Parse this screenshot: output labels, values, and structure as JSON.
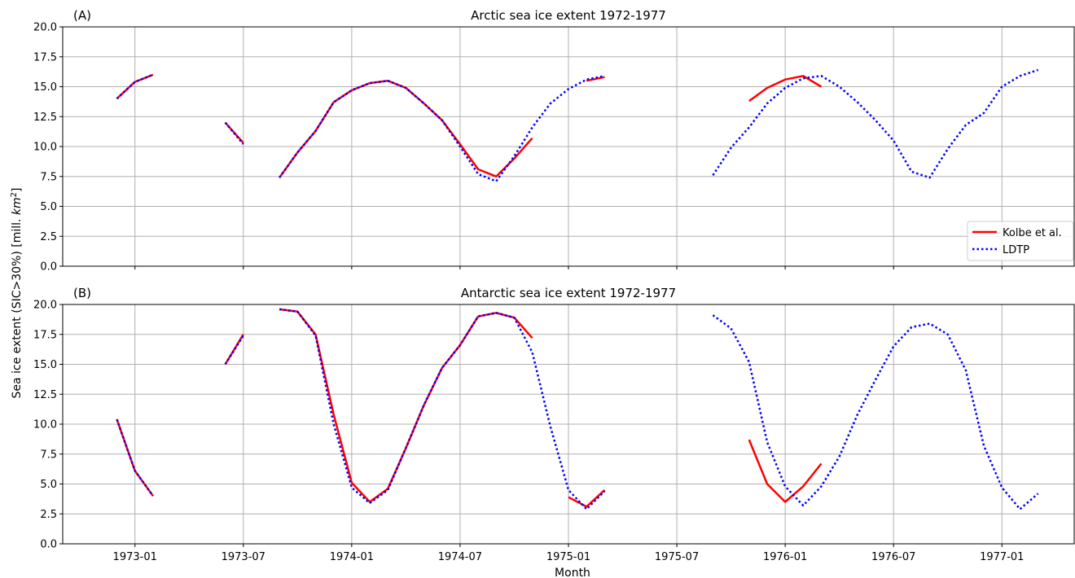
{
  "figure": {
    "ylabel": "Sea ice extent (SIC>30%) [mill. km²]",
    "ylabel_parts": [
      "Sea ice extent (SIC>30%) [mill. ",
      "km",
      "2",
      "]"
    ],
    "xlabel": "Month",
    "x_tick_labels": [
      "1973-01",
      "1973-07",
      "1974-01",
      "1974-07",
      "1975-01",
      "1975-07",
      "1976-01",
      "1976-07",
      "1977-01"
    ],
    "y_tick_labels": [
      "0.0",
      "2.5",
      "5.0",
      "7.5",
      "10.0",
      "12.5",
      "15.0",
      "17.5",
      "20.0"
    ]
  },
  "legend": {
    "placement": "lower right",
    "entries": [
      {
        "label": "Kolbe et al.",
        "color": "#ff0000",
        "style": "solid"
      },
      {
        "label": "LDTP",
        "color": "#0000ff",
        "style": "dotted"
      }
    ]
  },
  "chart_data": [
    {
      "type": "line",
      "panel": "(A)",
      "title": "Arctic sea ice extent 1972-1977",
      "xlabel": "",
      "ylabel": "Sea ice extent (SIC>30%) [mill. km²]",
      "ylim": [
        0,
        20
      ],
      "xlim": [
        "1972-09",
        "1977-05"
      ],
      "grid": true,
      "legend": "lower right",
      "series": [
        {
          "name": "Kolbe et al.",
          "color": "#ff0000",
          "style": "solid",
          "points": [
            [
              "1972-12",
              14.0
            ],
            [
              "1973-01",
              15.4
            ],
            [
              "1973-02",
              16.0
            ],
            null,
            [
              "1973-06",
              12.0
            ],
            [
              "1973-07",
              10.3
            ],
            null,
            [
              "1973-09",
              7.4
            ],
            [
              "1973-10",
              9.5
            ],
            [
              "1973-11",
              11.3
            ],
            [
              "1973-12",
              13.7
            ],
            [
              "1974-01",
              14.7
            ],
            [
              "1974-02",
              15.3
            ],
            [
              "1974-03",
              15.5
            ],
            [
              "1974-04",
              14.9
            ],
            [
              "1974-05",
              13.6
            ],
            [
              "1974-06",
              12.2
            ],
            [
              "1974-07",
              10.2
            ],
            [
              "1974-08",
              8.1
            ],
            [
              "1974-09",
              7.5
            ],
            [
              "1974-10",
              9.0
            ],
            [
              "1974-11",
              10.7
            ],
            null,
            [
              "1975-02",
              15.5
            ],
            [
              "1975-03",
              15.8
            ],
            null,
            [
              "1975-11",
              13.8
            ],
            [
              "1975-12",
              14.9
            ],
            [
              "1976-01",
              15.6
            ],
            [
              "1976-02",
              15.9
            ],
            [
              "1976-03",
              15.0
            ]
          ]
        },
        {
          "name": "LDTP",
          "color": "#0000ff",
          "style": "dotted",
          "points": [
            [
              "1972-12",
              14.0
            ],
            [
              "1973-01",
              15.4
            ],
            [
              "1973-02",
              16.0
            ],
            null,
            [
              "1973-06",
              12.0
            ],
            [
              "1973-07",
              10.2
            ],
            null,
            [
              "1973-09",
              7.4
            ],
            [
              "1973-10",
              9.5
            ],
            [
              "1973-11",
              11.3
            ],
            [
              "1973-12",
              13.7
            ],
            [
              "1974-01",
              14.7
            ],
            [
              "1974-02",
              15.3
            ],
            [
              "1974-03",
              15.5
            ],
            [
              "1974-04",
              14.9
            ],
            [
              "1974-05",
              13.6
            ],
            [
              "1974-06",
              12.2
            ],
            [
              "1974-07",
              10.0
            ],
            [
              "1974-08",
              7.7
            ],
            [
              "1974-09",
              7.1
            ],
            [
              "1974-10",
              9.2
            ],
            [
              "1974-11",
              11.6
            ],
            [
              "1974-12",
              13.6
            ],
            [
              "1975-01",
              14.8
            ],
            [
              "1975-02",
              15.6
            ],
            [
              "1975-03",
              15.9
            ],
            null,
            [
              "1975-09",
              7.6
            ],
            [
              "1975-10",
              9.9
            ],
            [
              "1975-11",
              11.6
            ],
            [
              "1975-12",
              13.6
            ],
            [
              "1976-01",
              14.9
            ],
            [
              "1976-02",
              15.7
            ],
            [
              "1976-03",
              15.9
            ],
            [
              "1976-04",
              15.0
            ],
            [
              "1976-05",
              13.7
            ],
            [
              "1976-06",
              12.2
            ],
            [
              "1976-07",
              10.5
            ],
            [
              "1976-08",
              7.9
            ],
            [
              "1976-09",
              7.4
            ],
            [
              "1976-10",
              9.8
            ],
            [
              "1976-11",
              11.8
            ],
            [
              "1976-12",
              12.8
            ],
            [
              "1977-01",
              15.0
            ],
            [
              "1977-02",
              15.9
            ],
            [
              "1977-03",
              16.4
            ]
          ]
        }
      ]
    },
    {
      "type": "line",
      "panel": "(B)",
      "title": "Antarctic sea ice extent 1972-1977",
      "xlabel": "Month",
      "ylabel": "Sea ice extent (SIC>30%) [mill. km²]",
      "ylim": [
        0,
        20
      ],
      "xlim": [
        "1972-09",
        "1977-05"
      ],
      "grid": true,
      "series": [
        {
          "name": "Kolbe et al.",
          "color": "#ff0000",
          "style": "solid",
          "points": [
            [
              "1972-12",
              10.4
            ],
            [
              "1973-01",
              6.1
            ],
            [
              "1973-02",
              4.0
            ],
            null,
            [
              "1973-06",
              15.0
            ],
            [
              "1973-07",
              17.5
            ],
            null,
            [
              "1973-09",
              19.6
            ],
            [
              "1973-10",
              19.4
            ],
            [
              "1973-11",
              17.5
            ],
            [
              "1973-12",
              10.8
            ],
            [
              "1974-01",
              5.1
            ],
            [
              "1974-02",
              3.5
            ],
            [
              "1974-03",
              4.6
            ],
            [
              "1974-04",
              8.0
            ],
            [
              "1974-05",
              11.6
            ],
            [
              "1974-06",
              14.7
            ],
            [
              "1974-07",
              16.6
            ],
            [
              "1974-08",
              19.0
            ],
            [
              "1974-09",
              19.3
            ],
            [
              "1974-10",
              18.9
            ],
            [
              "1974-11",
              17.2
            ],
            null,
            [
              "1975-01",
              3.9
            ],
            [
              "1975-02",
              3.1
            ],
            [
              "1975-03",
              4.5
            ],
            null,
            [
              "1975-11",
              8.7
            ],
            [
              "1975-12",
              5.0
            ],
            [
              "1976-01",
              3.5
            ],
            [
              "1976-02",
              4.8
            ],
            [
              "1976-03",
              6.7
            ]
          ]
        },
        {
          "name": "LDTP",
          "color": "#0000ff",
          "style": "dotted",
          "points": [
            [
              "1972-12",
              10.4
            ],
            [
              "1973-01",
              6.1
            ],
            [
              "1973-02",
              4.0
            ],
            null,
            [
              "1973-06",
              15.0
            ],
            [
              "1973-07",
              17.4
            ],
            null,
            [
              "1973-09",
              19.6
            ],
            [
              "1973-10",
              19.4
            ],
            [
              "1973-11",
              17.4
            ],
            [
              "1973-12",
              10.0
            ],
            [
              "1974-01",
              4.7
            ],
            [
              "1974-02",
              3.4
            ],
            [
              "1974-03",
              4.5
            ],
            [
              "1974-04",
              8.0
            ],
            [
              "1974-05",
              11.6
            ],
            [
              "1974-06",
              14.7
            ],
            [
              "1974-07",
              16.6
            ],
            [
              "1974-08",
              19.0
            ],
            [
              "1974-09",
              19.3
            ],
            [
              "1974-10",
              18.9
            ],
            [
              "1974-11",
              16.0
            ],
            [
              "1974-12",
              9.8
            ],
            [
              "1975-01",
              4.5
            ],
            [
              "1975-02",
              2.9
            ],
            [
              "1975-03",
              4.4
            ],
            null,
            [
              "1975-09",
              19.1
            ],
            [
              "1975-10",
              18.0
            ],
            [
              "1975-11",
              15.2
            ],
            [
              "1975-12",
              8.5
            ],
            [
              "1976-01",
              4.8
            ],
            [
              "1976-02",
              3.2
            ],
            [
              "1976-03",
              4.8
            ],
            [
              "1976-04",
              7.3
            ],
            [
              "1976-05",
              10.8
            ],
            [
              "1976-06",
              13.7
            ],
            [
              "1976-07",
              16.5
            ],
            [
              "1976-08",
              18.1
            ],
            [
              "1976-09",
              18.4
            ],
            [
              "1976-10",
              17.5
            ],
            [
              "1976-11",
              14.5
            ],
            [
              "1976-12",
              8.2
            ],
            [
              "1977-01",
              4.7
            ],
            [
              "1977-02",
              2.9
            ],
            [
              "1977-03",
              4.2
            ]
          ]
        }
      ]
    }
  ]
}
